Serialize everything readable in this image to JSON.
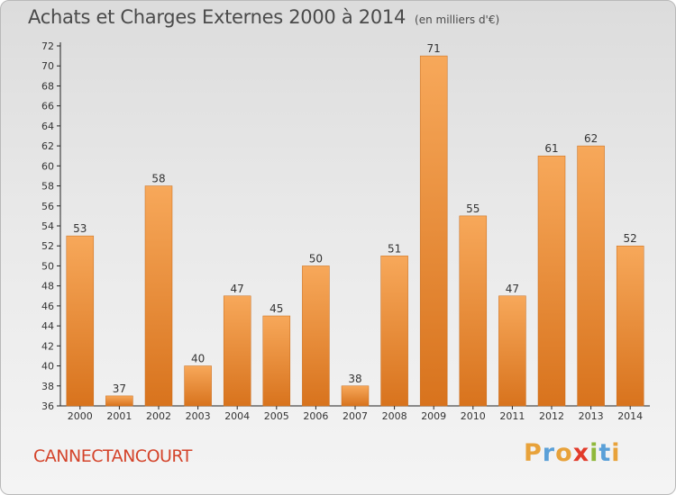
{
  "title": "Achats et Charges Externes 2000 à 2014",
  "subtitle": "(en milliers d'€)",
  "commune": "CANNECTANCOURT",
  "brand": "Proxiti",
  "colors": {
    "bar_top": "#f7a85a",
    "bar_bottom": "#d8731d",
    "commune_text": "#d4442b",
    "brand_letters": [
      "#e8a23a",
      "#5aa0d8",
      "#e8a23a",
      "#e23b2a",
      "#8fb83a",
      "#5aa0d8",
      "#e8a23a"
    ]
  },
  "chart_data": {
    "type": "bar",
    "categories": [
      "2000",
      "2001",
      "2002",
      "2003",
      "2004",
      "2005",
      "2006",
      "2007",
      "2008",
      "2009",
      "2010",
      "2011",
      "2012",
      "2013",
      "2014"
    ],
    "values": [
      53,
      37,
      58,
      40,
      47,
      45,
      50,
      38,
      51,
      71,
      55,
      47,
      61,
      62,
      52
    ],
    "ylim": [
      36,
      72
    ],
    "yticks": [
      36,
      38,
      40,
      42,
      44,
      46,
      48,
      50,
      52,
      54,
      56,
      58,
      60,
      62,
      64,
      66,
      68,
      70,
      72
    ],
    "grid": false
  }
}
